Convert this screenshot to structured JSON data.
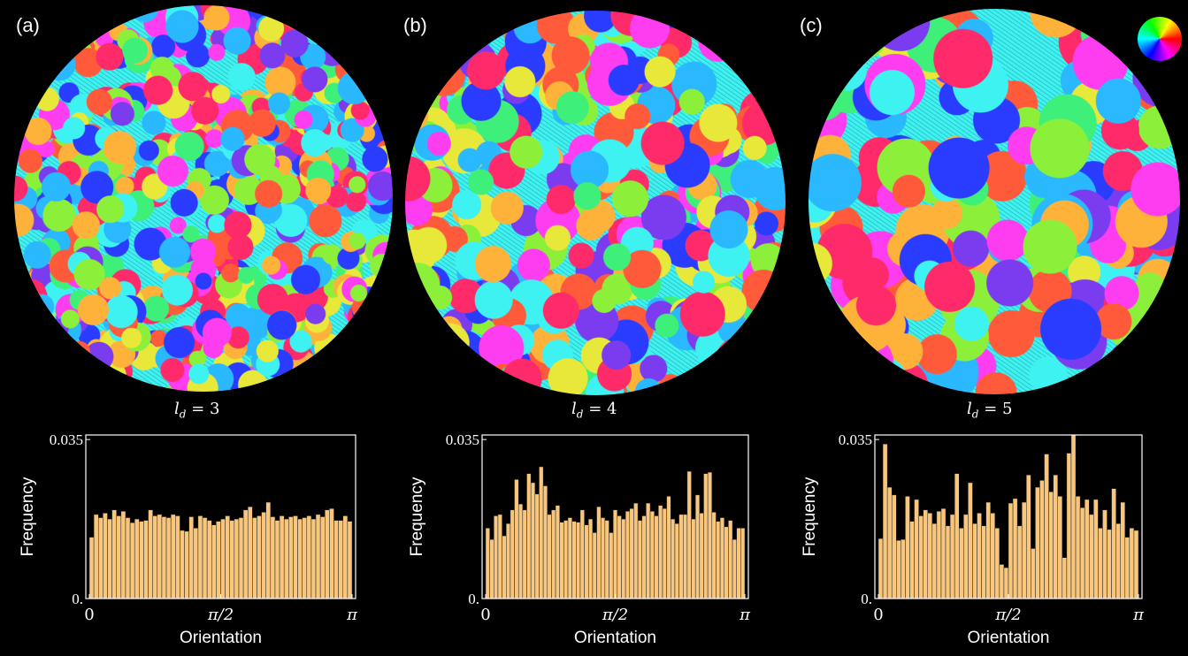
{
  "panels": [
    {
      "label": "(a)",
      "ld_symbol": "l",
      "ld_sub": "d",
      "ld_value": "= 3"
    },
    {
      "label": "(b)",
      "ld_symbol": "l",
      "ld_sub": "d",
      "ld_value": "= 4"
    },
    {
      "label": "(c)",
      "ld_symbol": "l",
      "ld_sub": "d",
      "ld_value": "= 5"
    }
  ],
  "colors": {
    "bar_fill": "#f8c67c",
    "bar_stroke": "#222222",
    "axis": "#ffffff",
    "background": "#000000",
    "domain_palette": [
      "#ff2a6a",
      "#ff3df0",
      "#7b3cf0",
      "#2a3cff",
      "#2ab8ff",
      "#3ff2f2",
      "#3ef07a",
      "#8cf03a",
      "#e8e83a",
      "#ffb23a",
      "#ff5a3a"
    ]
  },
  "icons": {
    "color_wheel": "orientation-color-wheel-icon"
  },
  "chart_data": [
    {
      "type": "bar",
      "xlabel": "Orientation",
      "ylabel": "Frequency",
      "x_ticks": [
        "0",
        "π/2",
        "π"
      ],
      "y_ticks": [
        "0.",
        "0.035"
      ],
      "ylim": [
        0,
        0.036
      ],
      "values": [
        0.0135,
        0.0185,
        0.0178,
        0.0188,
        0.0175,
        0.0195,
        0.0182,
        0.0192,
        0.0178,
        0.0167,
        0.0175,
        0.017,
        0.0172,
        0.0195,
        0.0182,
        0.0185,
        0.018,
        0.0178,
        0.0185,
        0.0182,
        0.015,
        0.0148,
        0.018,
        0.0155,
        0.0182,
        0.0178,
        0.0172,
        0.0162,
        0.017,
        0.0175,
        0.0182,
        0.0172,
        0.0175,
        0.0178,
        0.0195,
        0.0202,
        0.0178,
        0.0182,
        0.019,
        0.0212,
        0.018,
        0.0172,
        0.0182,
        0.0175,
        0.018,
        0.0182,
        0.0175,
        0.0178,
        0.0182,
        0.0175,
        0.0185,
        0.018,
        0.0195,
        0.0198,
        0.0172,
        0.0172,
        0.0182,
        0.017
      ]
    },
    {
      "type": "bar",
      "xlabel": "Orientation",
      "ylabel": "Frequency",
      "x_ticks": [
        "0",
        "π/2",
        "π"
      ],
      "y_ticks": [
        "0.",
        "0.035"
      ],
      "ylim": [
        0,
        0.036
      ],
      "values": [
        0.0155,
        0.013,
        0.0182,
        0.0185,
        0.0138,
        0.0165,
        0.0195,
        0.0262,
        0.0208,
        0.0195,
        0.0275,
        0.0255,
        0.023,
        0.029,
        0.0248,
        0.0185,
        0.0195,
        0.0205,
        0.0168,
        0.0172,
        0.0178,
        0.017,
        0.0168,
        0.0195,
        0.0162,
        0.0175,
        0.0145,
        0.0202,
        0.0178,
        0.0172,
        0.0145,
        0.0195,
        0.0182,
        0.0175,
        0.0192,
        0.0198,
        0.021,
        0.0172,
        0.0182,
        0.021,
        0.0192,
        0.0182,
        0.0205,
        0.0198,
        0.0225,
        0.0175,
        0.0165,
        0.0185,
        0.0185,
        0.028,
        0.0175,
        0.0228,
        0.0188,
        0.0275,
        0.0278,
        0.019,
        0.017,
        0.0178,
        0.0158,
        0.0172,
        0.013,
        0.0155,
        0.0155
      ]
    },
    {
      "type": "bar",
      "xlabel": "Orientation",
      "ylabel": "Frequency",
      "x_ticks": [
        "0",
        "π/2",
        "π"
      ],
      "y_ticks": [
        "0.",
        "0.035"
      ],
      "ylim": [
        0,
        0.036
      ],
      "values": [
        0.0132,
        0.034,
        0.0245,
        0.0228,
        0.0128,
        0.013,
        0.0225,
        0.017,
        0.0218,
        0.0182,
        0.0195,
        0.0188,
        0.0165,
        0.0192,
        0.0198,
        0.016,
        0.0185,
        0.0275,
        0.0155,
        0.0185,
        0.0255,
        0.0165,
        0.0188,
        0.016,
        0.0212,
        0.0188,
        0.0155,
        0.0075,
        0.0068,
        0.021,
        0.022,
        0.016,
        0.0212,
        0.0272,
        0.011,
        0.0245,
        0.026,
        0.0318,
        0.0235,
        0.0272,
        0.0225,
        0.009,
        0.032,
        0.036,
        0.0225,
        0.02,
        0.0218,
        0.0185,
        0.0218,
        0.0155,
        0.0195,
        0.0152,
        0.0242,
        0.0165,
        0.0212,
        0.0135,
        0.0155,
        0.015
      ]
    }
  ]
}
